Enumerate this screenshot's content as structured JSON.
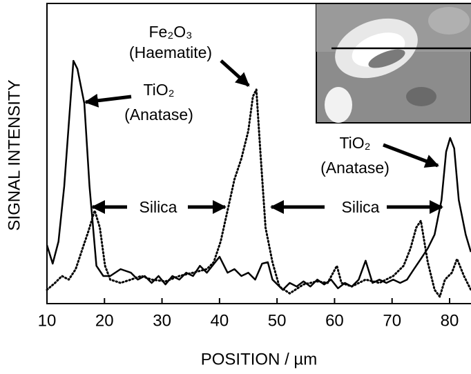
{
  "chart_data": {
    "type": "line",
    "xlabel": "POSITION / µm",
    "ylabel": "SIGNAL INTENSITY",
    "xlim": [
      10,
      83.7
    ],
    "ylim": [
      0,
      100
    ],
    "xticks": [
      10,
      20,
      30,
      40,
      50,
      60,
      70,
      80
    ],
    "annotations": [
      "Fe₂O₃",
      "(Haematite)",
      "TiO₂",
      "(Anatase)",
      "TiO₂",
      "(Anatase)",
      "Silica",
      "Silica"
    ],
    "series": [
      {
        "color": "#000000",
        "dash": "solid",
        "x": [
          10,
          11,
          12,
          13,
          14.6,
          15.3,
          16.5,
          17.4,
          18.6,
          19.8,
          21,
          22.8,
          24.6,
          25.8,
          27,
          28.2,
          29.4,
          30.6,
          31.8,
          33,
          34.2,
          35.4,
          36.6,
          37.8,
          40,
          41.4,
          42.6,
          43.8,
          45,
          46.2,
          47.4,
          48.4,
          49.2,
          51,
          52.2,
          53.4,
          54.6,
          55.8,
          57,
          58.2,
          59.4,
          60.6,
          61.8,
          63,
          64.2,
          65.4,
          66.6,
          67.8,
          69,
          70.2,
          71.4,
          72.6,
          73.8,
          75,
          76.2,
          77.4,
          78.6,
          79.4,
          80.1,
          80.8,
          81.6,
          82.8,
          83.7
        ],
        "values": [
          19.5,
          13.3,
          20.7,
          39.1,
          80.9,
          78.2,
          66.7,
          39.1,
          12.6,
          9.2,
          9.2,
          11.5,
          10.3,
          8.0,
          9.2,
          6.9,
          9.2,
          6.4,
          9.2,
          8.0,
          10.3,
          9.2,
          12.6,
          10.3,
          15.6,
          10.3,
          11.5,
          9.2,
          10.3,
          8.0,
          13.3,
          13.8,
          8.0,
          4.6,
          6.9,
          5.7,
          7.4,
          5.7,
          8.0,
          6.4,
          8.0,
          5.1,
          6.9,
          5.7,
          8.0,
          14.3,
          6.9,
          8.0,
          6.9,
          8.0,
          6.9,
          8.0,
          11.5,
          14.9,
          18.4,
          23.0,
          34.5,
          50.6,
          55.2,
          51.7,
          34.5,
          23.0,
          17.2
        ]
      },
      {
        "color": "#000000",
        "dash": "dotted",
        "x": [
          10,
          11.4,
          12.6,
          13.8,
          15,
          16.2,
          17.2,
          18.3,
          19.2,
          20.1,
          21,
          22.8,
          24.6,
          26.4,
          28.2,
          30.6,
          33,
          35.4,
          37.8,
          39,
          40.2,
          41.4,
          42.6,
          43.8,
          45,
          45.8,
          46.4,
          47.1,
          48,
          49.2,
          50.4,
          52.2,
          54.6,
          57,
          58.8,
          60.4,
          61.2,
          63,
          65.4,
          67.8,
          70.2,
          72,
          73.2,
          74.2,
          75,
          76.2,
          77.4,
          78.3,
          79.2,
          80.4,
          81.3,
          82.5,
          83.7
        ],
        "values": [
          4.6,
          6.9,
          9.2,
          8.0,
          11.5,
          18.4,
          24.1,
          31.0,
          25.3,
          12.6,
          8.0,
          6.9,
          8.0,
          9.2,
          8.0,
          7.4,
          9.2,
          10.3,
          11.5,
          13.8,
          20.7,
          31.0,
          41.4,
          48.3,
          57.5,
          69.0,
          71.3,
          50.6,
          25.3,
          13.8,
          5.7,
          3.4,
          6.4,
          7.4,
          6.9,
          12.6,
          6.9,
          5.7,
          8.0,
          6.9,
          9.2,
          12.6,
          18.4,
          25.3,
          27.6,
          13.8,
          4.6,
          2.3,
          8.0,
          10.3,
          14.9,
          9.2,
          4.6
        ]
      }
    ]
  }
}
